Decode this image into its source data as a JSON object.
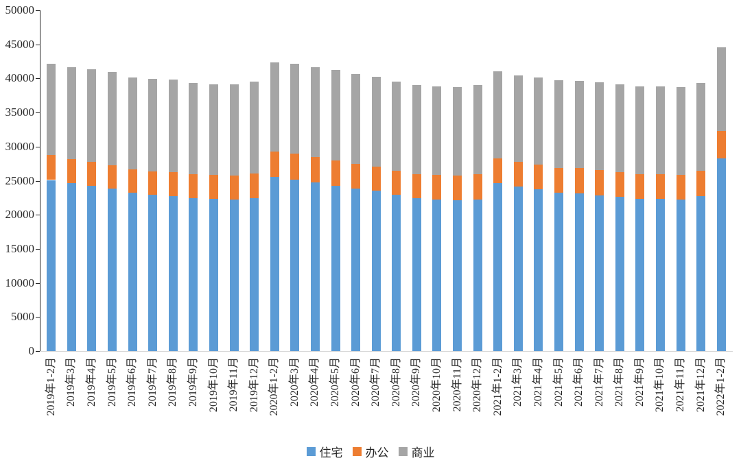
{
  "chart_data": {
    "type": "bar",
    "stacked": true,
    "title": "",
    "xlabel": "",
    "ylabel": "",
    "grid": false,
    "legend_position": "bottom",
    "ylim": [
      0,
      50000
    ],
    "ytick_step": 5000,
    "ytick_labels": [
      "0",
      "5000",
      "10000",
      "15000",
      "20000",
      "25000",
      "30000",
      "35000",
      "40000",
      "45000",
      "50000"
    ],
    "categories": [
      "2019年1-2月",
      "2019年3月",
      "2019年4月",
      "2019年5月",
      "2019年6月",
      "2019年7月",
      "2019年8月",
      "2019年9月",
      "2019年10月",
      "2019年11月",
      "2019年12月",
      "2020年1-2月",
      "2020年3月",
      "2020年4月",
      "2020年5月",
      "2020年6月",
      "2020年7月",
      "2020年8月",
      "2020年9月",
      "2020年10月",
      "2020年11月",
      "2020年12月",
      "2021年1-2月",
      "2021年3月",
      "2021年4月",
      "2021年5月",
      "2021年6月",
      "2021年7月",
      "2021年8月",
      "2021年9月",
      "2021年10月",
      "2021年11月",
      "2021年12月",
      "2022年1-2月"
    ],
    "series": [
      {
        "name": "住宅",
        "color": "#5B9BD5",
        "values": [
          25100,
          24600,
          24200,
          23800,
          23200,
          22900,
          22700,
          22400,
          22300,
          22200,
          22400,
          25600,
          25200,
          24700,
          24200,
          23800,
          23500,
          22900,
          22400,
          22200,
          22100,
          22200,
          24600,
          24100,
          23700,
          23200,
          23100,
          22800,
          22600,
          22300,
          22300,
          22200,
          22700,
          28300
        ]
      },
      {
        "name": "办公",
        "color": "#ED7D31",
        "values": [
          3700,
          3600,
          3600,
          3500,
          3500,
          3500,
          3600,
          3600,
          3600,
          3600,
          3700,
          3700,
          3800,
          3800,
          3800,
          3700,
          3600,
          3600,
          3600,
          3700,
          3700,
          3800,
          3700,
          3700,
          3700,
          3700,
          3800,
          3800,
          3700,
          3700,
          3700,
          3700,
          3800,
          4000
        ]
      },
      {
        "name": "商业",
        "color": "#A5A5A5",
        "values": [
          13400,
          13500,
          13500,
          13600,
          13400,
          13500,
          13500,
          13300,
          13200,
          13300,
          13400,
          13100,
          13200,
          13100,
          13200,
          13100,
          13100,
          13000,
          13000,
          12900,
          12900,
          13000,
          12700,
          12600,
          12700,
          12800,
          12700,
          12800,
          12800,
          12800,
          12800,
          12800,
          12800,
          12300
        ]
      }
    ],
    "colors": {
      "axis": "#262626",
      "baseline": "#D9D9D9",
      "text": "#262626",
      "background": "#FFFFFF"
    }
  }
}
